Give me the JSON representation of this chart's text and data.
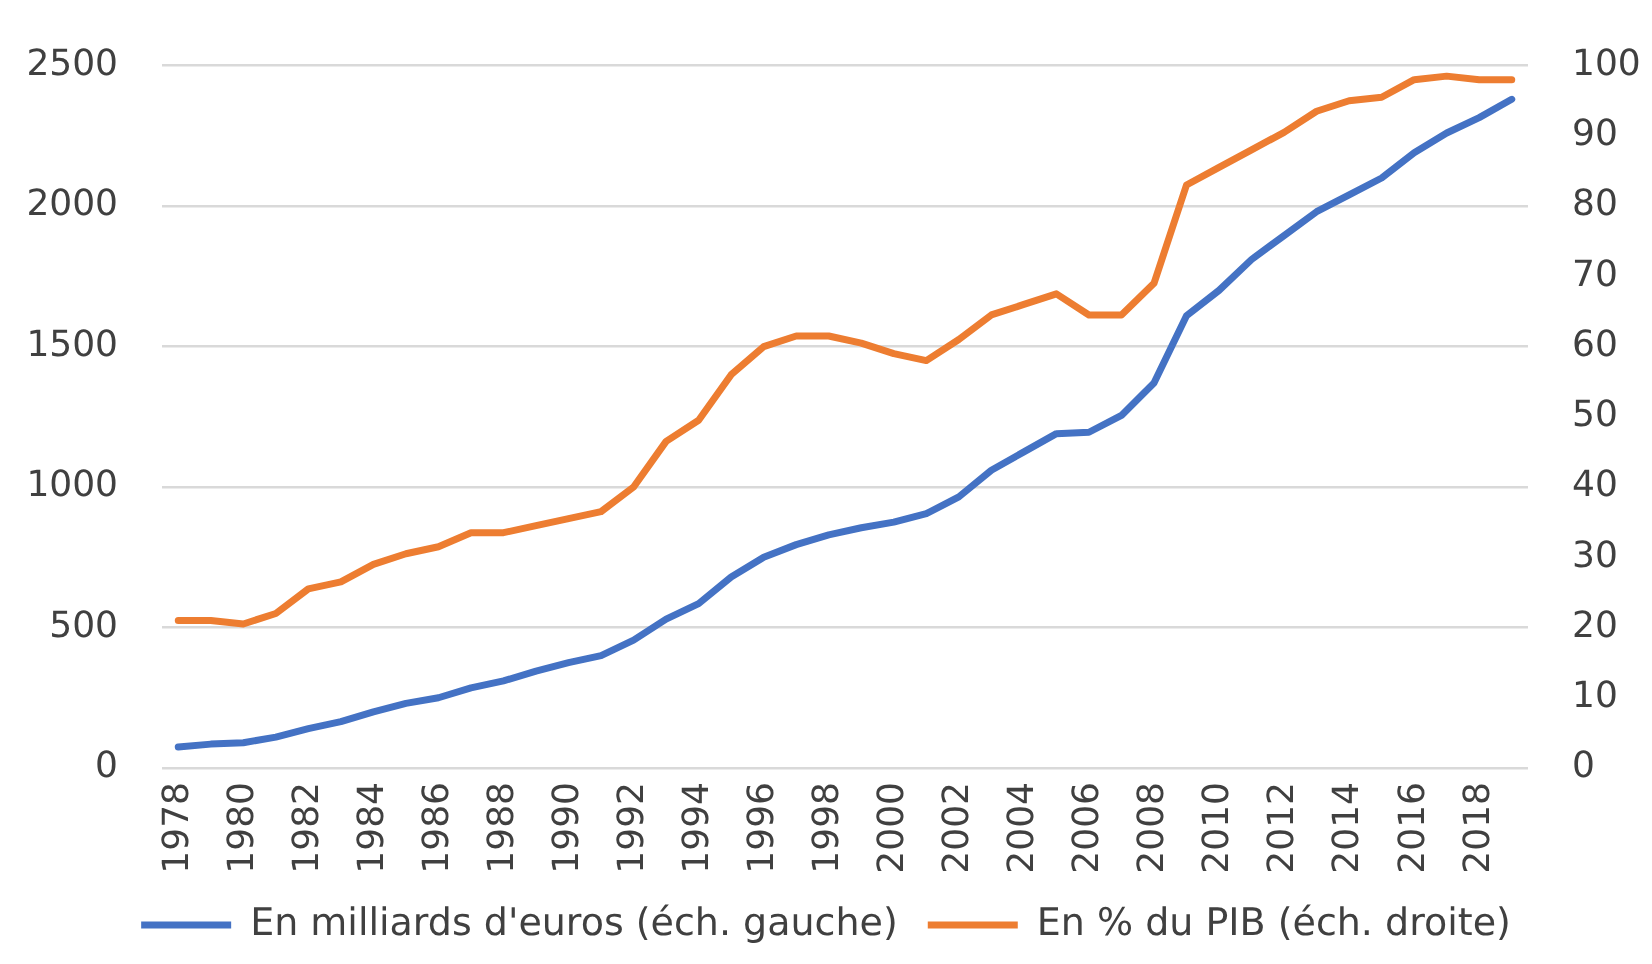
{
  "chart_data": {
    "type": "line",
    "categories": [
      "1978",
      null,
      "1980",
      null,
      "1982",
      null,
      "1984",
      null,
      "1986",
      null,
      "1988",
      null,
      "1990",
      null,
      "1992",
      null,
      "1994",
      null,
      "1996",
      null,
      "1998",
      null,
      "2000",
      null,
      "2002",
      null,
      "2004",
      null,
      "2006",
      null,
      "2008",
      null,
      "2010",
      null,
      "2012",
      null,
      "2014",
      null,
      "2016",
      null,
      "2018",
      null
    ],
    "series": [
      {
        "name": "En milliards d'euros (éch. gauche)",
        "color": "#4472c4",
        "values": [
          75,
          85,
          90,
          110,
          140,
          165,
          200,
          230,
          250,
          285,
          310,
          345,
          375,
          400,
          455,
          530,
          585,
          680,
          750,
          795,
          830,
          855,
          875,
          905,
          965,
          1060,
          1125,
          1190,
          1195,
          1255,
          1370,
          1610,
          1700,
          1810,
          1895,
          1980,
          2040,
          2100,
          2190,
          2260,
          2315,
          2380
        ]
      },
      {
        "name": "En % du PIB (éch. droite)",
        "color": "#ed7d31",
        "axis": "y2",
        "values": [
          21,
          21,
          20.5,
          22,
          25.5,
          26.5,
          29,
          30.5,
          31.5,
          33.5,
          33.5,
          34.5,
          35.5,
          36.5,
          40,
          46.5,
          49.5,
          56,
          60,
          61.5,
          61.5,
          60.5,
          59,
          58,
          61,
          64.5,
          66,
          67.5,
          64.5,
          64.5,
          69,
          83,
          85.5,
          88,
          90.5,
          93.5,
          95,
          95.5,
          98,
          98.5,
          98,
          98
        ]
      }
    ],
    "ylim": [
      0,
      2500
    ],
    "yticks": [
      0,
      500,
      1000,
      1500,
      2000,
      2500
    ],
    "y2lim": [
      0,
      100
    ],
    "y2ticks": [
      0,
      10,
      20,
      30,
      40,
      50,
      60,
      70,
      80,
      90,
      100
    ],
    "grid": "y",
    "legend": "bottom"
  }
}
